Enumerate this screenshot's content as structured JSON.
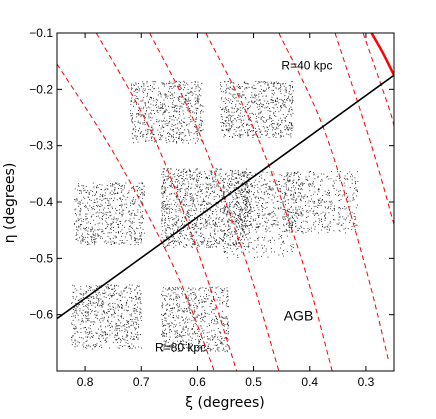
{
  "chart_data": {
    "type": "scatter",
    "xlabel": "ξ (degrees)",
    "ylabel": "η (degrees)",
    "xlim": [
      0.85,
      0.25
    ],
    "ylim": [
      -0.7,
      -0.1
    ],
    "x_reversed": true,
    "xticks": [
      0.8,
      0.7,
      0.6,
      0.5,
      0.4,
      0.3
    ],
    "xtick_labels": [
      "0.8",
      "0.7",
      "0.6",
      "0.5",
      "0.4",
      "0.3"
    ],
    "yticks": [
      -0.1,
      -0.2,
      -0.3,
      -0.4,
      -0.5,
      -0.6
    ],
    "ytick_labels": [
      "−0.1",
      "−0.2",
      "−0.3",
      "−0.4",
      "−0.5",
      "−0.6"
    ],
    "grid": false,
    "annotations": [
      {
        "text": "R=40 kpc",
        "x": 0.405,
        "y": -0.165
      },
      {
        "text": "R=80 kpc",
        "x": 0.63,
        "y": -0.665
      },
      {
        "text": "AGB",
        "x": 0.42,
        "y": -0.61
      }
    ],
    "major_axis_line": {
      "x": [
        0.85,
        0.25
      ],
      "y": [
        -0.607,
        -0.175
      ],
      "color": "#000000"
    },
    "dashed_contours": {
      "color": "#ff0000",
      "style": "dashed",
      "curves": [
        {
          "x": [
            0.85,
            0.745,
            0.64,
            0.57
          ],
          "y": [
            -0.155,
            -0.32,
            -0.52,
            -0.7
          ]
        },
        {
          "x": [
            0.78,
            0.68,
            0.595,
            0.53
          ],
          "y": [
            -0.1,
            -0.28,
            -0.5,
            -0.7
          ]
        },
        {
          "x": [
            0.685,
            0.6,
            0.515,
            0.455
          ],
          "y": [
            -0.1,
            -0.27,
            -0.5,
            -0.7
          ]
        },
        {
          "x": [
            0.585,
            0.495,
            0.415,
            0.36
          ],
          "y": [
            -0.1,
            -0.28,
            -0.5,
            -0.7
          ]
        },
        {
          "x": [
            0.455,
            0.375,
            0.305,
            0.26
          ],
          "y": [
            -0.1,
            -0.27,
            -0.5,
            -0.68
          ]
        },
        {
          "x": [
            0.355,
            0.29,
            0.25
          ],
          "y": [
            -0.1,
            -0.3,
            -0.44
          ]
        },
        {
          "x": [
            0.305,
            0.26,
            0.25
          ],
          "y": [
            -0.1,
            -0.23,
            -0.265
          ]
        }
      ]
    },
    "solid_contour": {
      "color": "#ff0000",
      "x": [
        0.29,
        0.27,
        0.25
      ],
      "y": [
        -0.1,
        -0.135,
        -0.175
      ]
    },
    "fields": [
      {
        "x0": 0.72,
        "x1": 0.59,
        "y0": -0.185,
        "y1": -0.295,
        "n": 620
      },
      {
        "x0": 0.56,
        "x1": 0.43,
        "y0": -0.185,
        "y1": -0.285,
        "n": 620
      },
      {
        "x0": 0.82,
        "x1": 0.695,
        "y0": -0.365,
        "y1": -0.475,
        "n": 560
      },
      {
        "x0": 0.665,
        "x1": 0.505,
        "y0": -0.34,
        "y1": -0.48,
        "n": 1200
      },
      {
        "x0": 0.535,
        "x1": 0.415,
        "y0": -0.345,
        "y1": -0.445,
        "n": 260
      },
      {
        "x0": 0.825,
        "x1": 0.7,
        "y0": -0.545,
        "y1": -0.66,
        "n": 620
      },
      {
        "x0": 0.665,
        "x1": 0.545,
        "y0": -0.55,
        "y1": -0.665,
        "n": 620
      },
      {
        "x0": 0.555,
        "x1": 0.43,
        "y0": -0.36,
        "y1": -0.5,
        "n": 280
      },
      {
        "x0": 0.445,
        "x1": 0.315,
        "y0": -0.345,
        "y1": -0.455,
        "n": 420
      }
    ]
  }
}
